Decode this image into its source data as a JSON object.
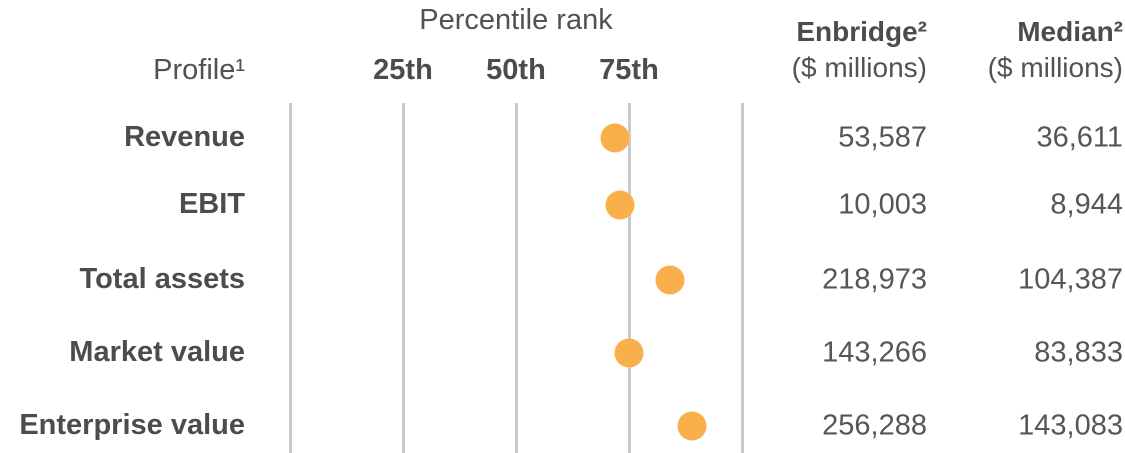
{
  "chart_data": {
    "type": "scatter",
    "title": "Percentile rank",
    "row_header": "Profile¹",
    "xlabel": "",
    "ylabel": "",
    "axis": {
      "range_percentile": [
        0,
        100
      ],
      "gridlines_percentile": [
        0,
        25,
        50,
        75,
        100
      ],
      "ticks": [
        {
          "label": "25th",
          "percentile": 25
        },
        {
          "label": "50th",
          "percentile": 50
        },
        {
          "label": "75th",
          "percentile": 75
        }
      ],
      "grid": true,
      "legend": "none"
    },
    "value_columns": [
      {
        "label": "Enbridge²",
        "sublabel": "($ millions)"
      },
      {
        "label": "Median²",
        "sublabel": "($ millions)"
      }
    ],
    "rows": [
      {
        "label": "Revenue",
        "percentile": 72,
        "enbridge": "53,587",
        "median": "36,611"
      },
      {
        "label": "EBIT",
        "percentile": 73,
        "enbridge": "10,003",
        "median": "8,944"
      },
      {
        "label": "Total assets",
        "percentile": 84,
        "enbridge": "218,973",
        "median": "104,387"
      },
      {
        "label": "Market value",
        "percentile": 75,
        "enbridge": "143,266",
        "median": "83,833"
      },
      {
        "label": "Enterprise value",
        "percentile": 89,
        "enbridge": "256,288",
        "median": "143,083"
      }
    ],
    "colors": {
      "dot": "#F9B04B",
      "gridline": "#C9CACC",
      "text_bold": "#4B4C4F",
      "text_regular": "#55565A"
    }
  }
}
